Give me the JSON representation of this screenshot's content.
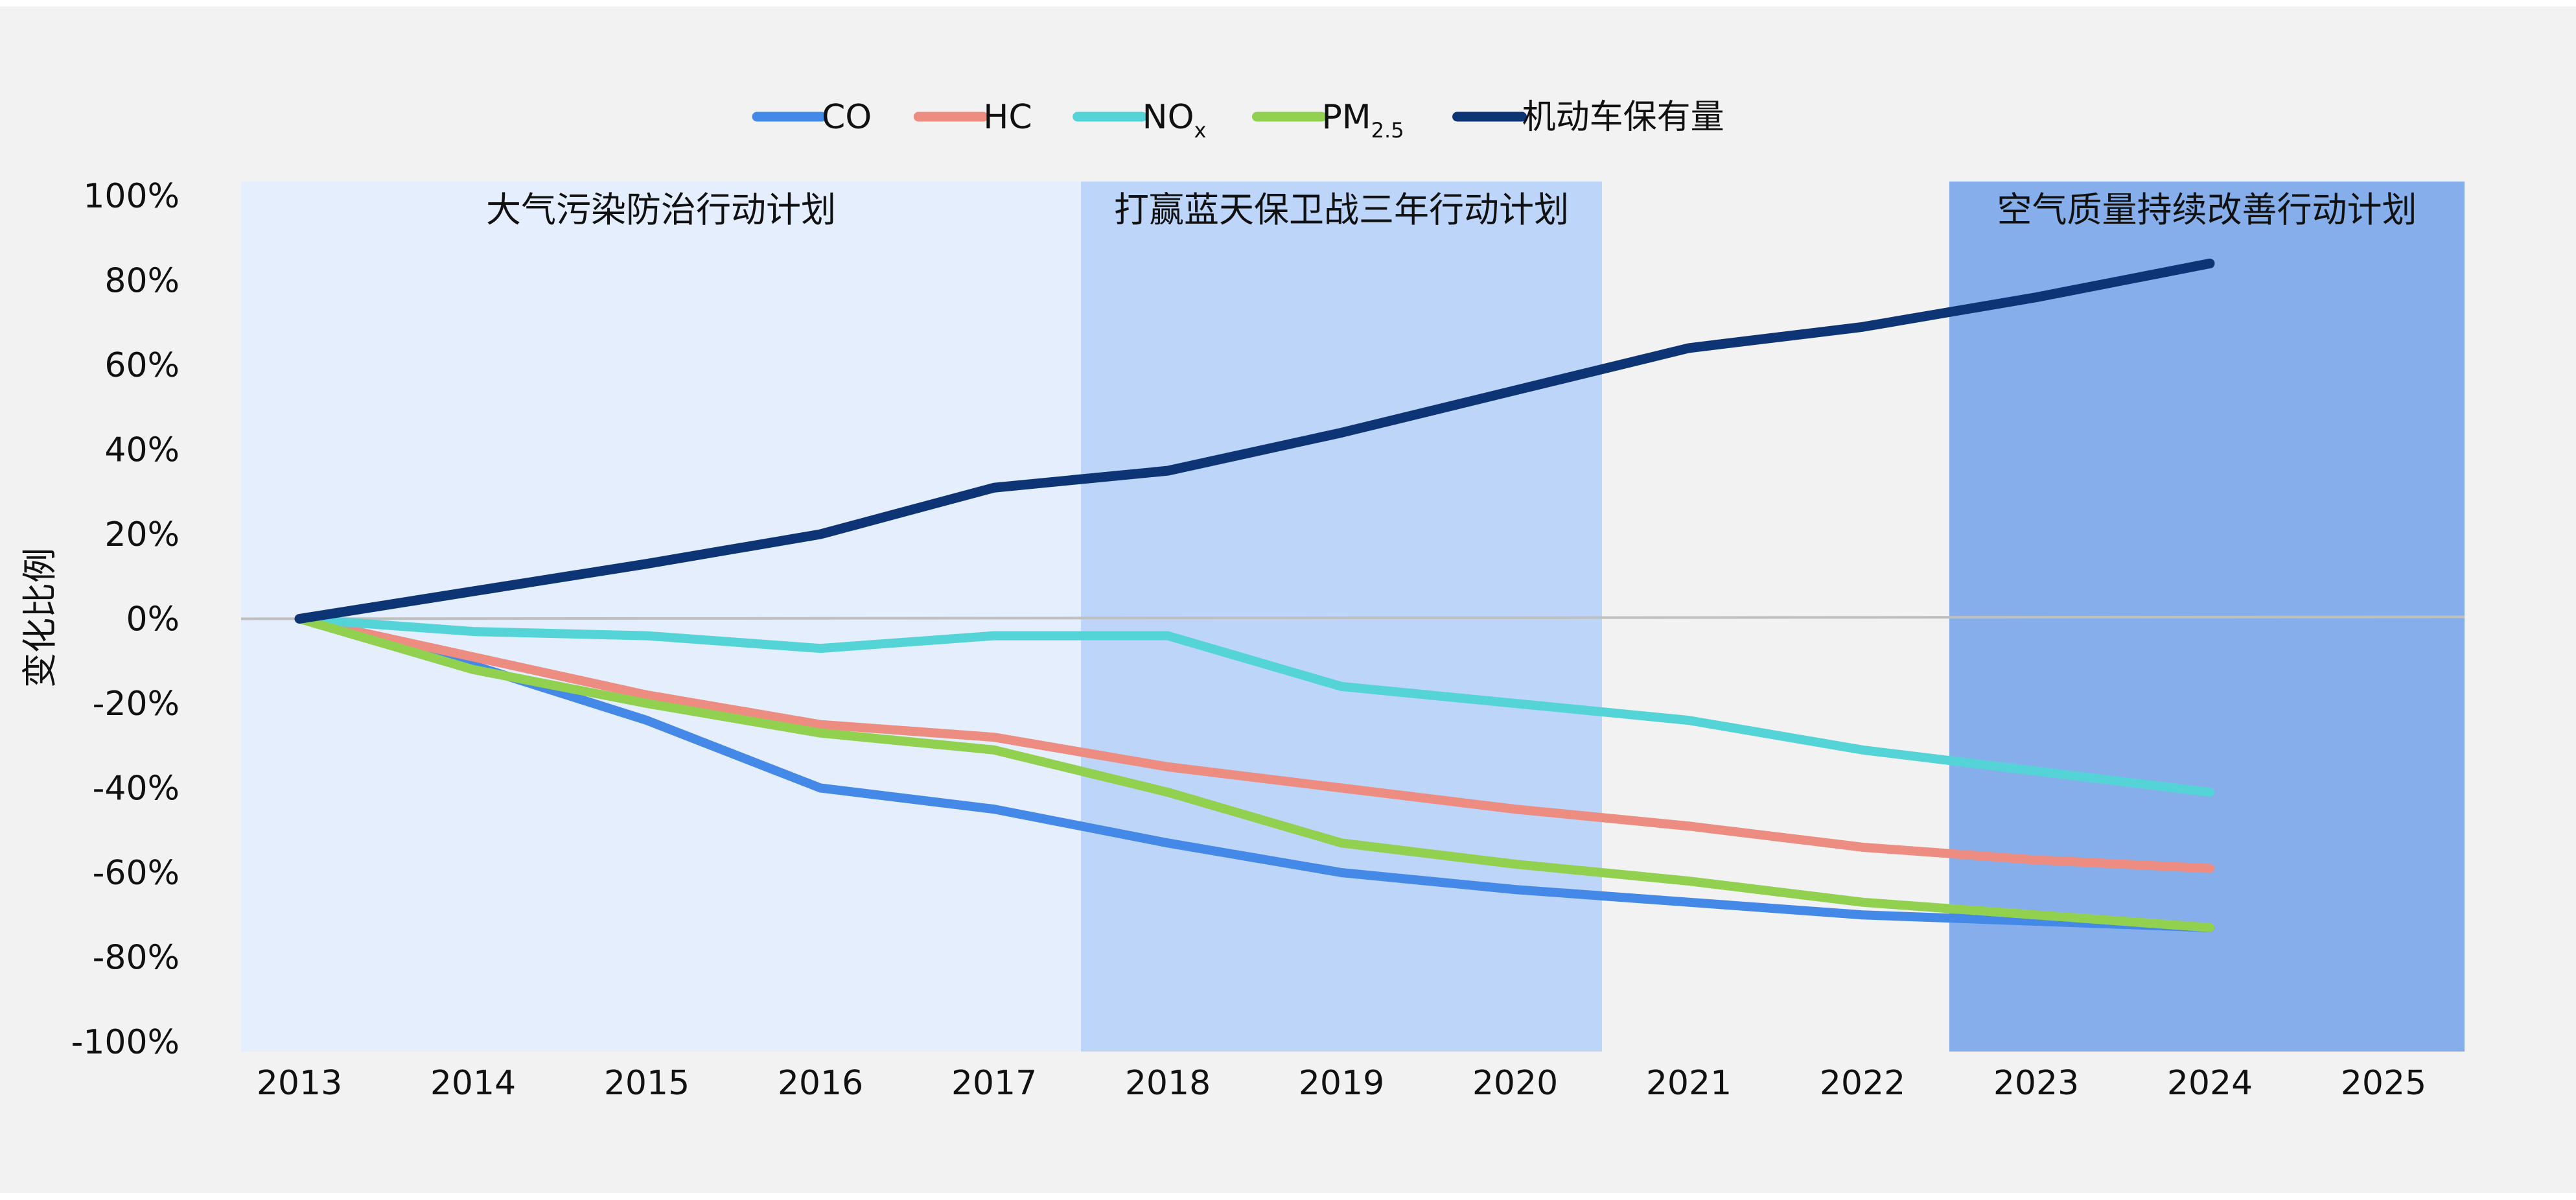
{
  "chart_data": {
    "type": "line",
    "title": "",
    "xlabel": "",
    "ylabel": "变化比例",
    "x": [
      "2013",
      "2014",
      "2015",
      "2016",
      "2017",
      "2018",
      "2019",
      "2020",
      "2021",
      "2022",
      "2023",
      "2024",
      "2025"
    ],
    "ylim": [
      -100,
      100
    ],
    "yticks": [
      100,
      80,
      60,
      40,
      20,
      0,
      -20,
      -40,
      -60,
      -80,
      -100
    ],
    "ytick_labels": [
      "100%",
      "80%",
      "60%",
      "40%",
      "20%",
      "0%",
      "-20%",
      "-40%",
      "-60%",
      "-80%",
      "-100%"
    ],
    "grid": false,
    "legend": "top-center",
    "series": [
      {
        "key": "co",
        "name": "CO",
        "sub": "",
        "color": "#4589e8",
        "values": [
          0,
          -11,
          -24,
          -40,
          -45,
          -53,
          -60,
          -64,
          -67,
          -70,
          -71.5,
          -73,
          null
        ]
      },
      {
        "key": "hc",
        "name": "HC",
        "sub": "",
        "color": "#ed8c80",
        "values": [
          0,
          -9,
          -18,
          -25,
          -28,
          -35,
          -40,
          -45,
          -49,
          -54,
          -57,
          -59,
          null
        ]
      },
      {
        "key": "nox",
        "name": "NO",
        "sub": "x",
        "color": "#55d4d8",
        "values": [
          0,
          -3,
          -4,
          -7,
          -4,
          -4,
          -16,
          -20,
          -24,
          -31,
          -36,
          -41,
          null
        ]
      },
      {
        "key": "pm25",
        "name": "PM",
        "sub": "2.5",
        "color": "#92d050",
        "values": [
          0,
          -12,
          -20,
          -27,
          -31,
          -41,
          -53,
          -58,
          -62,
          -67,
          -70,
          -73,
          null
        ]
      },
      {
        "key": "vehicles",
        "name": "机动车保有量",
        "sub": "",
        "color": "#0d3475",
        "values": [
          0,
          6.5,
          13,
          20,
          31,
          35,
          44,
          54,
          64,
          69,
          76,
          84,
          null
        ]
      }
    ],
    "periods": [
      {
        "label": "大气污染防治行动计划",
        "from": 2013,
        "to": 2017,
        "color": "#e4eefc"
      },
      {
        "label": "打赢蓝天保卫战三年行动计划",
        "from": 2018,
        "to": 2020,
        "color": "#bcd5f8"
      },
      {
        "label": "空气质量持续改善行动计划",
        "from": 2023,
        "to": 2025,
        "color": "#86aeea"
      }
    ]
  }
}
